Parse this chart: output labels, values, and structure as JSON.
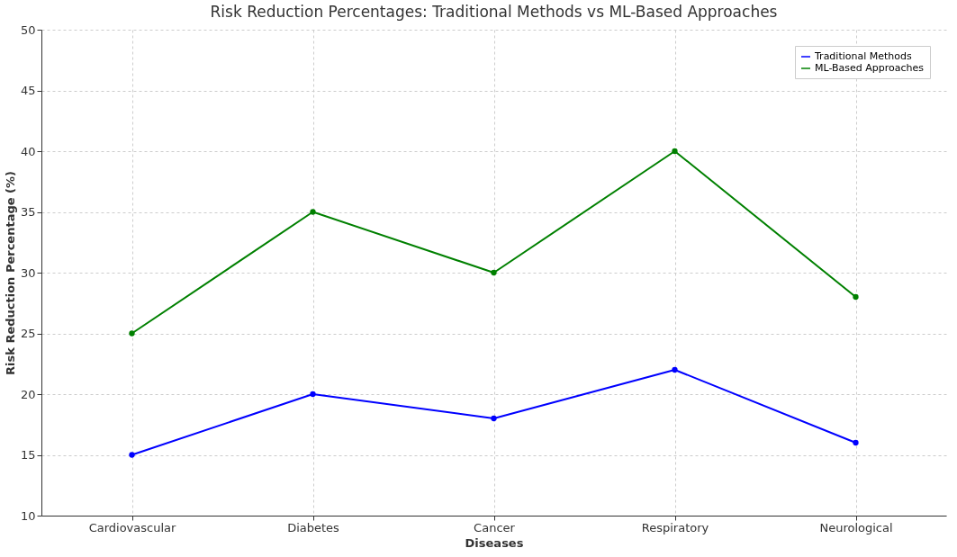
{
  "chart_data": {
    "type": "line",
    "title": "Risk Reduction Percentages: Traditional Methods vs ML-Based Approaches",
    "xlabel": "Diseases",
    "ylabel": "Risk Reduction Percentage (%)",
    "categories": [
      "Cardiovascular",
      "Diabetes",
      "Cancer",
      "Respiratory",
      "Neurological"
    ],
    "series": [
      {
        "name": "Traditional Methods",
        "color": "#0000ff",
        "values": [
          15,
          20,
          18,
          22,
          16
        ]
      },
      {
        "name": "ML-Based Approaches",
        "color": "#008000",
        "values": [
          25,
          35,
          30,
          40,
          28
        ]
      }
    ],
    "ylim": [
      10,
      50
    ],
    "yticks": [
      10,
      15,
      20,
      25,
      30,
      35,
      40,
      45,
      50
    ],
    "grid": true,
    "legend": "top right",
    "marker": "circle",
    "line_style": "solid"
  }
}
